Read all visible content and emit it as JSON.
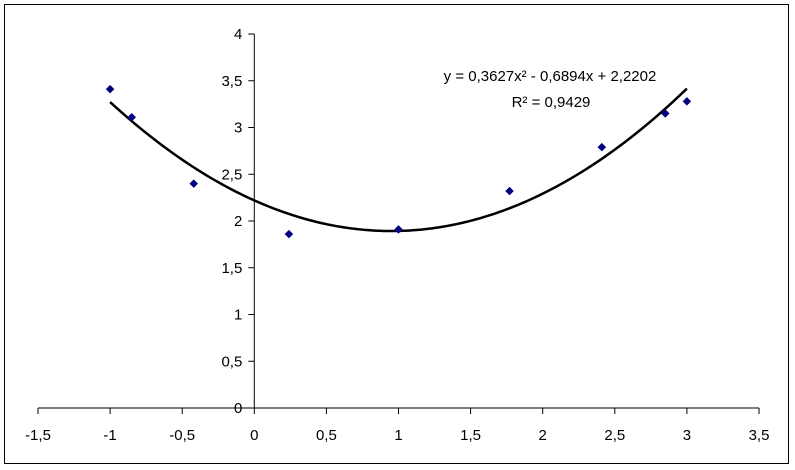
{
  "chart_data": {
    "type": "scatter",
    "title": "",
    "xlabel": "",
    "ylabel": "",
    "xlim": [
      -1.5,
      3.5
    ],
    "ylim": [
      0,
      4
    ],
    "x_ticks": [
      -1.5,
      -1,
      -0.5,
      0,
      0.5,
      1,
      1.5,
      2,
      2.5,
      3,
      3.5
    ],
    "y_ticks": [
      0,
      0.5,
      1,
      1.5,
      2,
      2.5,
      3,
      3.5,
      4
    ],
    "x_tick_labels": [
      "-1,5",
      "-1",
      "-0,5",
      "0",
      "0,5",
      "1",
      "1,5",
      "2",
      "2,5",
      "3",
      "3,5"
    ],
    "y_tick_labels": [
      "0",
      "0,5",
      "1",
      "1,5",
      "2",
      "2,5",
      "3",
      "3,5",
      "4"
    ],
    "grid": false,
    "legend": "none",
    "marker_color": "#000080",
    "trendline_color": "#000000",
    "series": [
      {
        "x": [
          -1.0,
          -0.85,
          -0.42,
          0.24,
          1.0,
          1.77,
          2.41,
          2.85,
          3.0
        ],
        "y": [
          3.41,
          3.11,
          2.4,
          1.86,
          1.91,
          2.32,
          2.79,
          3.15,
          3.28
        ]
      }
    ],
    "trendline": {
      "type": "polynomial",
      "coefficients": [
        0.3627,
        -0.6894,
        2.2202
      ],
      "x_range": [
        -1.0,
        3.0
      ],
      "equation_text": "y = 0,3627x² - 0,6894x + 2,2202",
      "r2_text": "R² = 0,9429"
    }
  }
}
